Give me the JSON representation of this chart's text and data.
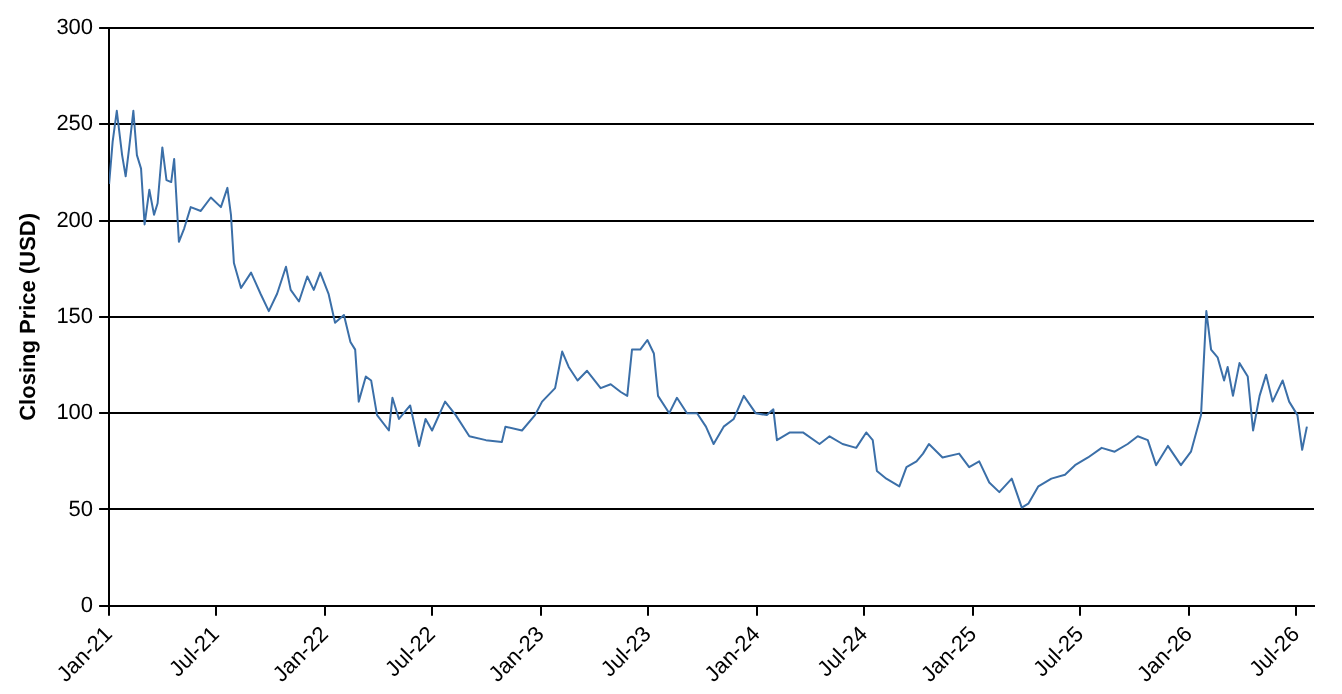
{
  "chart_data": {
    "type": "line",
    "ylabel": "Closing Price (USD)",
    "x": [
      "2021-01-01",
      "2021-01-07",
      "2021-01-14",
      "2021-01-23",
      "2021-01-29",
      "2021-02-04",
      "2021-02-11",
      "2021-02-17",
      "2021-02-24",
      "2021-03-02",
      "2021-03-10",
      "2021-03-18",
      "2021-03-24",
      "2021-04-01",
      "2021-04-08",
      "2021-04-16",
      "2021-04-21",
      "2021-04-29",
      "2021-05-08",
      "2021-05-19",
      "2021-06-05",
      "2021-06-22",
      "2021-07-09",
      "2021-07-20",
      "2021-07-26",
      "2021-07-31",
      "2021-08-12",
      "2021-08-29",
      "2021-09-14",
      "2021-09-28",
      "2021-10-12",
      "2021-10-27",
      "2021-11-04",
      "2021-11-18",
      "2021-12-02",
      "2021-12-13",
      "2021-12-24",
      "2022-01-07",
      "2022-01-18",
      "2022-02-02",
      "2022-02-13",
      "2022-02-21",
      "2022-02-27",
      "2022-03-11",
      "2022-03-20",
      "2022-03-30",
      "2022-04-19",
      "2022-04-25",
      "2022-05-06",
      "2022-05-25",
      "2022-06-09",
      "2022-06-20",
      "2022-07-01",
      "2022-07-23",
      "2022-08-10",
      "2022-09-02",
      "2022-09-30",
      "2022-10-27",
      "2022-11-02",
      "2022-11-30",
      "2022-12-22",
      "2023-01-03",
      "2023-01-25",
      "2023-02-06",
      "2023-02-17",
      "2023-03-04",
      "2023-03-20",
      "2023-04-12",
      "2023-04-29",
      "2023-05-16",
      "2023-05-27",
      "2023-06-04",
      "2023-06-18",
      "2023-06-30",
      "2023-07-11",
      "2023-07-18",
      "2023-08-06",
      "2023-08-19",
      "2023-09-05",
      "2023-09-22",
      "2023-10-07",
      "2023-10-20",
      "2023-11-06",
      "2023-11-23",
      "2023-12-10",
      "2023-12-30",
      "2024-01-18",
      "2024-01-29",
      "2024-02-04",
      "2024-02-26",
      "2024-03-19",
      "2024-04-16",
      "2024-05-03",
      "2024-05-25",
      "2024-06-17",
      "2024-07-04",
      "2024-07-15",
      "2024-07-22",
      "2024-08-07",
      "2024-08-29",
      "2024-09-10",
      "2024-09-27",
      "2024-10-08",
      "2024-10-18",
      "2024-11-10",
      "2024-12-08",
      "2024-12-25",
      "2025-01-11",
      "2025-01-28",
      "2025-02-14",
      "2025-03-07",
      "2025-03-24",
      "2025-04-04",
      "2025-04-21",
      "2025-05-13",
      "2025-06-05",
      "2025-06-22",
      "2025-07-14",
      "2025-08-06",
      "2025-08-28",
      "2025-09-19",
      "2025-10-06",
      "2025-10-23",
      "2025-11-06",
      "2025-11-26",
      "2025-12-18",
      "2026-01-04",
      "2026-01-21",
      "2026-01-30",
      "2026-02-07",
      "2026-02-18",
      "2026-03-01",
      "2026-03-07",
      "2026-03-16",
      "2026-03-27",
      "2026-04-10",
      "2026-04-19",
      "2026-04-30",
      "2026-05-11",
      "2026-05-22",
      "2026-06-08",
      "2026-06-19",
      "2026-07-03",
      "2026-07-11",
      "2026-07-19"
    ],
    "series": [
      {
        "color": "#3b6fa8",
        "values": [
          219,
          241,
          257,
          234,
          223,
          238,
          257,
          234,
          227,
          198,
          216,
          203,
          209,
          238,
          221,
          220,
          232,
          189,
          196,
          207,
          205,
          212,
          207,
          217,
          203,
          178,
          165,
          173,
          162,
          153,
          162,
          176,
          164,
          158,
          171,
          164,
          173,
          162,
          147,
          151,
          137,
          133,
          106,
          119,
          117,
          99,
          91,
          108,
          97,
          104,
          83,
          97,
          91,
          106,
          99,
          88,
          86,
          85,
          93,
          91,
          99,
          106,
          113,
          132,
          124,
          117,
          122,
          113,
          115,
          111,
          109,
          133,
          133,
          138,
          131,
          109,
          100,
          108,
          100,
          100,
          93,
          84,
          93,
          97,
          109,
          100,
          99,
          102,
          86,
          90,
          90,
          84,
          88,
          84,
          82,
          90,
          86,
          70,
          66,
          62,
          72,
          75,
          79,
          84,
          77,
          79,
          72,
          75,
          64,
          59,
          66,
          51,
          53,
          62,
          66,
          68,
          73,
          77,
          82,
          80,
          84,
          88,
          86,
          73,
          83,
          73,
          80,
          99,
          153,
          133,
          129,
          117,
          124,
          109,
          126,
          119,
          91,
          109,
          120,
          106,
          117,
          106,
          99,
          81,
          93
        ]
      }
    ],
    "xlim": [
      "2021-01-01",
      "2026-07-31"
    ],
    "xticks": [
      {
        "value": "2021-01-01",
        "label": "Jan-21"
      },
      {
        "value": "2021-07-01",
        "label": "Jul-21"
      },
      {
        "value": "2022-01-01",
        "label": "Jan-22"
      },
      {
        "value": "2022-07-01",
        "label": "Jul-22"
      },
      {
        "value": "2023-01-01",
        "label": "Jan-23"
      },
      {
        "value": "2023-07-01",
        "label": "Jul-23"
      },
      {
        "value": "2024-01-01",
        "label": "Jan-24"
      },
      {
        "value": "2024-07-01",
        "label": "Jul-24"
      },
      {
        "value": "2025-01-01",
        "label": "Jan-25"
      },
      {
        "value": "2025-07-01",
        "label": "Jul-25"
      },
      {
        "value": "2026-01-01",
        "label": "Jan-26"
      },
      {
        "value": "2026-07-01",
        "label": "Jul-26"
      }
    ],
    "ylim": [
      0,
      300
    ],
    "yticks": [
      0,
      50,
      100,
      150,
      200,
      250,
      300
    ],
    "grid": "y",
    "marker": "none",
    "line_style": "solid"
  }
}
